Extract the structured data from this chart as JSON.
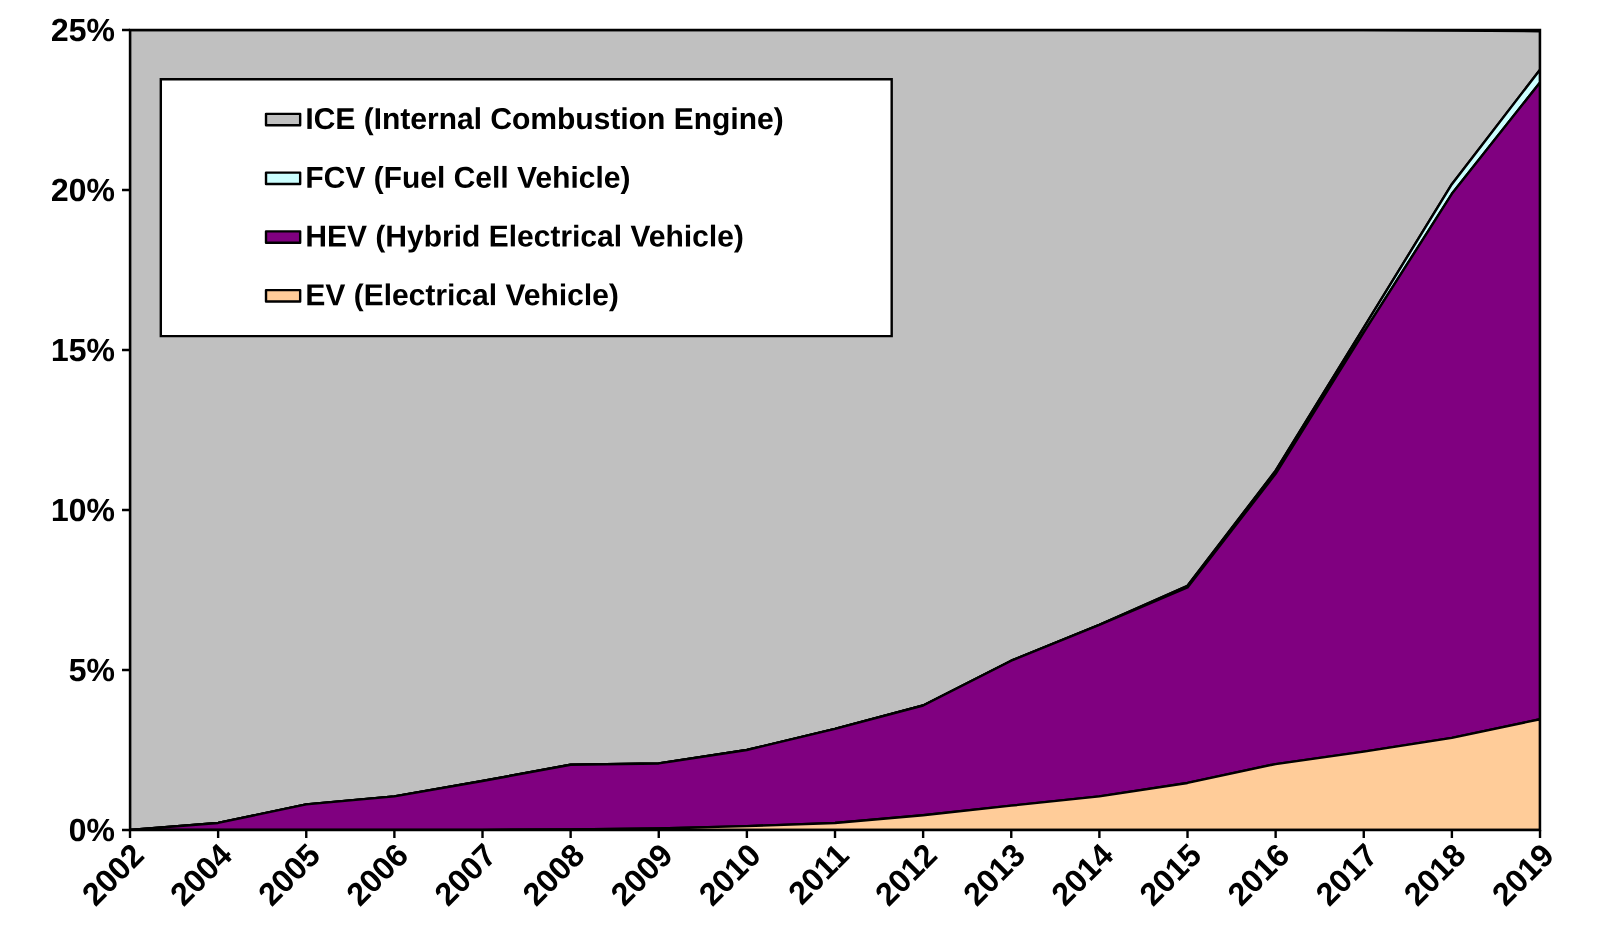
{
  "chart_data": {
    "type": "area",
    "stacked": true,
    "categories": [
      "2002",
      "2004",
      "2005",
      "2006",
      "2007",
      "2008",
      "2009",
      "2010",
      "2011",
      "2012",
      "2013",
      "2014",
      "2015",
      "2016",
      "2017",
      "2018",
      "2019"
    ],
    "series": [
      {
        "name": "EV (Electrical Vehicle)",
        "color": "#ffcc99",
        "values": [
          0,
          0,
          0,
          0,
          0,
          0.02,
          0.05,
          0.12,
          0.22,
          0.46,
          0.76,
          1.05,
          1.47,
          2.06,
          2.45,
          2.88,
          3.46
        ]
      },
      {
        "name": "HEV (Hybrid Electrical Vehicle)",
        "color": "#800080",
        "values": [
          0,
          0.22,
          0.8,
          1.05,
          1.53,
          2.02,
          2.03,
          2.38,
          2.94,
          3.43,
          4.53,
          5.36,
          6.11,
          9.07,
          13.1,
          17.0,
          19.9
        ]
      },
      {
        "name": "FCV (Fuel Cell Vehicle)",
        "color": "#ccffff",
        "values": [
          0,
          0,
          0,
          0,
          0,
          0,
          0,
          0,
          0,
          0,
          0,
          0,
          0.05,
          0.1,
          0.15,
          0.3,
          0.4
        ]
      },
      {
        "name": "ICE (Internal Combustion Engine)",
        "color": "#c0c0c0",
        "values": [
          25,
          24.78,
          24.2,
          23.95,
          23.47,
          22.96,
          22.92,
          22.5,
          21.84,
          21.11,
          19.71,
          18.59,
          17.37,
          13.77,
          9.3,
          4.8,
          1.2
        ]
      }
    ],
    "ylim": [
      0,
      25
    ],
    "yticks": [
      {
        "value": 0,
        "label": "0%"
      },
      {
        "value": 5,
        "label": "5%"
      },
      {
        "value": 10,
        "label": "10%"
      },
      {
        "value": 15,
        "label": "15%"
      },
      {
        "value": 20,
        "label": "20%"
      },
      {
        "value": 25,
        "label": "25%"
      }
    ],
    "legend": "top left",
    "grid": false,
    "marker": "none"
  }
}
